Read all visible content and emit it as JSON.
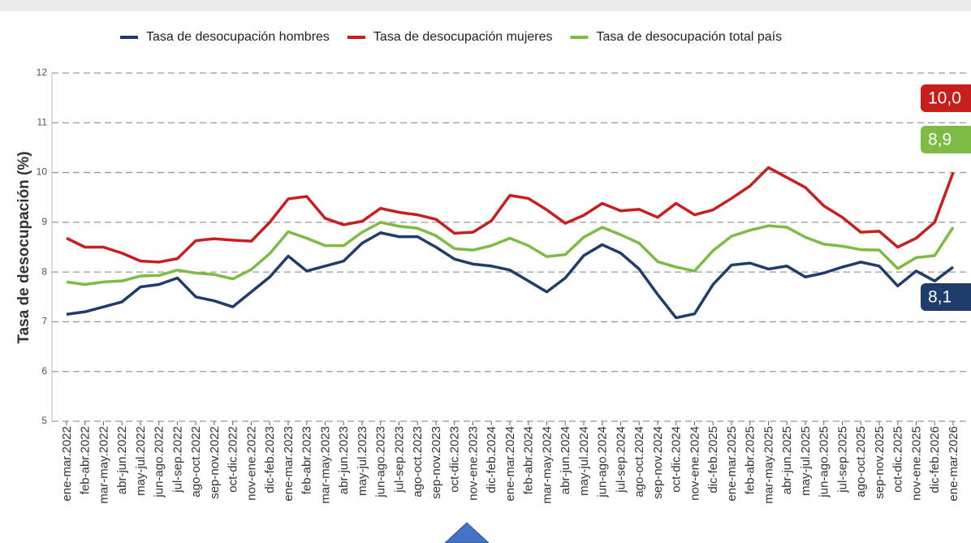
{
  "chart_data": {
    "type": "line",
    "y_label": "Tasa de desocupación (%)",
    "categories": [
      "ene-mar.2022",
      "feb-abr.2022",
      "mar-may.2022",
      "abr-jun.2022",
      "may-jul.2022",
      "jun-ago.2022",
      "jul-sep.2022",
      "ago-oct.2022",
      "sep-nov.2022",
      "oct-dic.2022",
      "nov-ene.2022",
      "dic-feb.2023",
      "ene-mar.2023",
      "feb-abr.2023",
      "mar-may.2023",
      "abr-jun.2023",
      "may-jul.2023",
      "jun-ago.2023",
      "jul-sep.2023",
      "ago-oct.2023",
      "sep-nov.2023",
      "oct-dic.2023",
      "nov-ene.2023",
      "dic-feb.2024",
      "ene-mar.2024",
      "feb-abr.2024",
      "mar-may.2024",
      "abr-jun.2024",
      "may-jul.2024",
      "jun-ago.2024",
      "jul-sep.2024",
      "ago-oct.2024",
      "sep-nov.2024",
      "oct-dic.2024",
      "nov-ene.2024",
      "dic-feb.2025",
      "ene-mar.2025",
      "feb-abr.2025",
      "mar-may.2025",
      "abr-jun.2025",
      "may-jul.2025",
      "jun-ago.2025",
      "jul-sep.2025",
      "ago-oct.2025",
      "sep-nov.2025",
      "oct-dic.2025",
      "nov-ene.2025",
      "dic-feb.2026",
      "ene-mar.2026"
    ],
    "series": [
      {
        "name": "Tasa de desocupación hombres",
        "color": "#1f3d6b",
        "end_label": "8,1",
        "values": [
          7.15,
          7.2,
          7.3,
          7.4,
          7.7,
          7.75,
          7.88,
          7.5,
          7.42,
          7.3,
          7.6,
          7.9,
          8.32,
          8.02,
          8.12,
          8.22,
          8.58,
          8.79,
          8.71,
          8.71,
          8.5,
          8.26,
          8.16,
          8.12,
          8.04,
          7.82,
          7.6,
          7.88,
          8.33,
          8.55,
          8.38,
          8.06,
          7.55,
          7.08,
          7.16,
          7.75,
          8.14,
          8.18,
          8.06,
          8.12,
          7.9,
          7.98,
          8.1,
          8.2,
          8.12,
          7.72,
          8.02,
          7.82,
          8.1
        ]
      },
      {
        "name": "Tasa de desocupación mujeres",
        "color": "#c81e1e",
        "end_label": "10,0",
        "values": [
          8.68,
          8.5,
          8.5,
          8.38,
          8.22,
          8.2,
          8.27,
          8.63,
          8.67,
          8.64,
          8.62,
          9.0,
          9.47,
          9.52,
          9.08,
          8.95,
          9.02,
          9.28,
          9.2,
          9.15,
          9.06,
          8.78,
          8.8,
          9.03,
          9.54,
          9.48,
          9.25,
          8.98,
          9.14,
          9.38,
          9.23,
          9.26,
          9.1,
          9.38,
          9.15,
          9.25,
          9.48,
          9.73,
          10.1,
          9.9,
          9.7,
          9.33,
          9.1,
          8.8,
          8.82,
          8.5,
          8.68,
          9.0,
          10.0
        ]
      },
      {
        "name": "Tasa de desocupación total país",
        "color": "#7dbb45",
        "end_label": "8,9",
        "values": [
          7.8,
          7.75,
          7.8,
          7.82,
          7.92,
          7.93,
          8.04,
          7.98,
          7.95,
          7.86,
          8.05,
          8.37,
          8.81,
          8.68,
          8.53,
          8.53,
          8.8,
          9.0,
          8.92,
          8.88,
          8.73,
          8.47,
          8.44,
          8.53,
          8.68,
          8.53,
          8.31,
          8.35,
          8.7,
          8.9,
          8.75,
          8.58,
          8.21,
          8.1,
          8.02,
          8.43,
          8.72,
          8.84,
          8.93,
          8.9,
          8.7,
          8.56,
          8.52,
          8.45,
          8.44,
          8.07,
          8.29,
          8.33,
          8.9
        ]
      }
    ],
    "ylim": [
      5,
      12
    ],
    "yticks": [
      5,
      6,
      7,
      8,
      9,
      10,
      11,
      12
    ],
    "grid": true
  }
}
